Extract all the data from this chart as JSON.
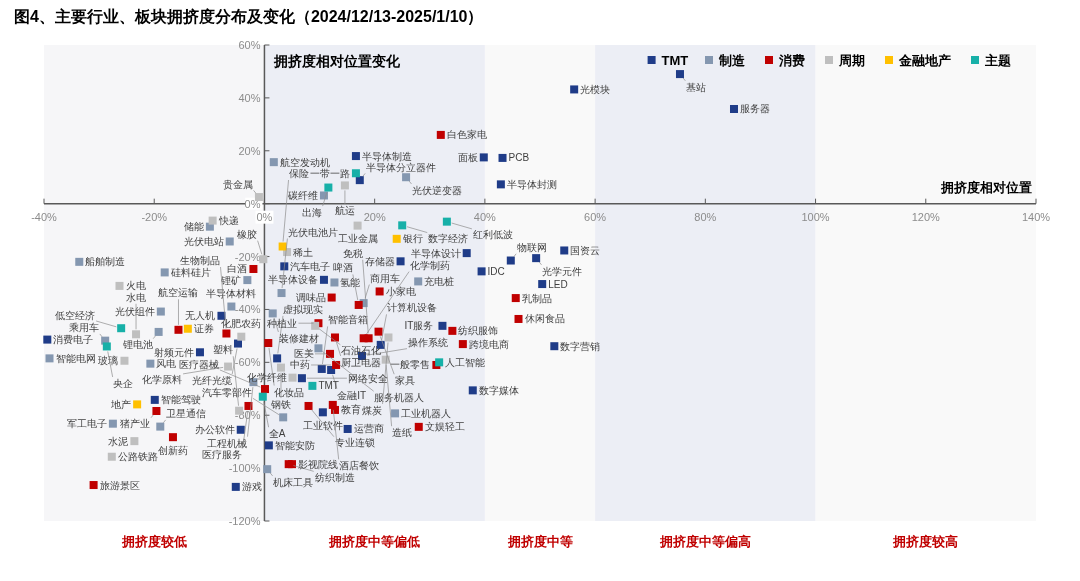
{
  "chart_data": {
    "type": "scatter",
    "title": "图4、主要行业、板块拥挤度分布及变化（2024/12/13-2025/1/10）",
    "xlabel": "拥挤度相对位置",
    "ylabel": "拥挤度相对位置变化",
    "xlim": [
      -40,
      140
    ],
    "ylim": [
      -120,
      60
    ],
    "xticks": [
      {
        "value": -40,
        "label": "-40%"
      },
      {
        "value": -20,
        "label": "-20%"
      },
      {
        "value": 0,
        "label": "0%"
      },
      {
        "value": 20,
        "label": "20%"
      },
      {
        "value": 40,
        "label": "40%"
      },
      {
        "value": 60,
        "label": "60%"
      },
      {
        "value": 80,
        "label": "80%"
      },
      {
        "value": 100,
        "label": "100%"
      },
      {
        "value": 120,
        "label": "120%"
      },
      {
        "value": 140,
        "label": "140%"
      }
    ],
    "yticks": [
      {
        "value": 60,
        "label": "60%"
      },
      {
        "value": 40,
        "label": "40%"
      },
      {
        "value": 20,
        "label": "20%"
      },
      {
        "value": 0,
        "label": "0%"
      },
      {
        "value": -20,
        "label": "-20%"
      },
      {
        "value": -40,
        "label": "-40%"
      },
      {
        "value": -60,
        "label": "-60%"
      },
      {
        "value": -80,
        "label": "-80%"
      },
      {
        "value": -100,
        "label": "-100%"
      },
      {
        "value": -120,
        "label": "-120%"
      }
    ],
    "grid": false,
    "legend": "top right",
    "marker": "square",
    "bands": [
      {
        "axis": "x",
        "from": -40,
        "to": 0,
        "label": "拥挤度较低",
        "color": "#f6f6f8"
      },
      {
        "axis": "x",
        "from": 0,
        "to": 40,
        "label": "拥挤度中等偏低",
        "color": "#eceef5"
      },
      {
        "axis": "x",
        "from": 40,
        "to": 60,
        "label": "拥挤度中等",
        "color": "#f9f9f9"
      },
      {
        "axis": "x",
        "from": 60,
        "to": 100,
        "label": "拥挤度中等偏高",
        "color": "#eceef5"
      },
      {
        "axis": "x",
        "from": 100,
        "to": 140,
        "label": "拥挤度较高",
        "color": "#f9f9f9"
      }
    ],
    "series": [
      {
        "name": "TMT",
        "color": "#1f3c88",
        "x": [
          75.4,
          56.2,
          85.2,
          39.8,
          43.2,
          42.9,
          16.6,
          17.3,
          -7.8,
          -39.4,
          -11.7,
          -4.8,
          -19.9,
          -4.3,
          -5.2,
          0.8,
          10.6,
          15.1,
          37.8,
          6.8,
          12.1,
          10.4,
          2.3,
          36.7,
          24.7,
          39.4,
          3.6,
          10.8,
          32.3,
          21.1,
          17.7,
          54.4,
          44.7,
          49.3,
          50.4,
          52.6
        ],
        "values": [
          49.0,
          43.2,
          35.8,
          17.5,
          17.3,
          7.3,
          18.0,
          8.9,
          -42.4,
          -51.4,
          -56.2,
          -52.9,
          -74.2,
          -85.5,
          -107.1,
          -91.4,
          -78.9,
          -85.2,
          -70.6,
          -66.0,
          -62.9,
          -62.5,
          -58.5,
          -18.7,
          -21.8,
          -25.6,
          -23.7,
          -28.8,
          -46.2,
          -53.4,
          -57.6,
          -17.7,
          -21.5,
          -20.6,
          -30.4,
          -53.9
        ]
      },
      {
        "name": "制造",
        "color": "#8497b0",
        "x": [
          1.7,
          25.7,
          10.8,
          -9.9,
          -6.3,
          -3.1,
          -33.6,
          -18.1,
          -18.8,
          -6.0,
          -19.2,
          -28.9,
          -39.0,
          -20.7,
          -18.9,
          -27.5,
          0.5,
          3.4,
          23.7,
          12.7,
          27.9,
          3.1,
          18.0,
          1.5,
          9.8,
          -2.0
        ],
        "values": [
          15.7,
          10.0,
          3.1,
          -8.7,
          -14.3,
          -28.9,
          -22.0,
          -26.0,
          -40.8,
          -38.9,
          -48.5,
          -51.8,
          -58.5,
          -60.5,
          -84.3,
          -83.2,
          -100.4,
          -80.8,
          -79.3,
          -29.8,
          -29.4,
          -33.8,
          -37.6,
          -41.5,
          -54.7,
          -67.5
        ]
      },
      {
        "name": "消费",
        "color": "#c00000",
        "x": [
          32.0,
          -2.0,
          -15.6,
          -6.9,
          0.7,
          0.1,
          -2.9,
          -19.6,
          -16.6,
          -31.0,
          8.0,
          12.4,
          12.8,
          28.0,
          4.4,
          5.0,
          31.2,
          20.9,
          12.2,
          17.1,
          9.8,
          34.1,
          36.0,
          20.7,
          18.9,
          18.0,
          12.8,
          11.9,
          13.0,
          45.6,
          46.1
        ],
        "values": [
          26.0,
          -24.7,
          -47.7,
          -49.1,
          -52.7,
          -70.1,
          -76.5,
          -78.4,
          -88.3,
          -106.4,
          -76.5,
          -76.1,
          -78.0,
          -84.4,
          -98.5,
          -98.5,
          -61.0,
          -33.2,
          -35.5,
          -38.3,
          -45.2,
          -48.1,
          -53.1,
          -48.4,
          -50.9,
          -50.9,
          -50.6,
          -56.8,
          -61.0,
          -35.7,
          -43.6
        ]
      },
      {
        "name": "周期",
        "color": "#bfbfbf",
        "x": [
          14.6,
          -1.0,
          -9.4,
          -0.2,
          -26.3,
          -23.3,
          -4.2,
          -6.6,
          -25.4,
          -23.6,
          -27.7,
          -4.6,
          16.9,
          4.1,
          9.2,
          22.5,
          5.1,
          3.0,
          22.0
        ],
        "values": [
          6.9,
          2.5,
          -6.4,
          -21.0,
          -31.1,
          -49.4,
          -50.3,
          -61.6,
          -59.4,
          -89.8,
          -95.7,
          -78.3,
          -8.3,
          -18.3,
          -46.2,
          -50.6,
          -65.8,
          -62.0,
          -59.0
        ]
      },
      {
        "name": "金融地产",
        "color": "#ffc000",
        "x": [
          -13.9,
          -23.1,
          24.0,
          3.3
        ],
        "values": [
          -47.3,
          -75.9,
          -13.3,
          -16.2
        ]
      },
      {
        "name": "主题",
        "color": "#17b0a8",
        "x": [
          16.6,
          11.6,
          -26.0,
          -28.6,
          -0.3,
          8.7,
          31.7,
          25.0,
          33.1
        ],
        "values": [
          11.5,
          6.1,
          -47.1,
          -54.0,
          -73.0,
          -68.9,
          -60.0,
          -8.2,
          -6.8
        ]
      }
    ],
    "annotations": [
      {
        "text": "基站",
        "x": 75.4,
        "y": 49.0
      },
      {
        "text": "光模块",
        "x": 56.2,
        "y": 43.2
      },
      {
        "text": "服务器",
        "x": 85.2,
        "y": 35.8
      },
      {
        "text": "面板",
        "x": 39.8,
        "y": 17.5
      },
      {
        "text": "PCB",
        "x": 43.2,
        "y": 17.3
      },
      {
        "text": "半导体封测",
        "x": 42.9,
        "y": 7.3
      },
      {
        "text": "半导体制造",
        "x": 16.6,
        "y": 18.0
      },
      {
        "text": "半导体分立器件",
        "x": 17.3,
        "y": 8.9
      },
      {
        "text": "无人机",
        "x": -7.8,
        "y": -42.4
      },
      {
        "text": "消费电子",
        "x": -39.4,
        "y": -51.4
      },
      {
        "text": "射频元件",
        "x": -11.7,
        "y": -56.2
      },
      {
        "text": "光纤光缆",
        "x": -4.8,
        "y": -52.9
      },
      {
        "text": "智能驾驶",
        "x": -19.9,
        "y": -74.2
      },
      {
        "text": "办公软件",
        "x": -4.3,
        "y": -85.5
      },
      {
        "text": "游戏",
        "x": -5.2,
        "y": -107.1
      },
      {
        "text": "智能安防",
        "x": 0.8,
        "y": -91.4
      },
      {
        "text": "工业软件",
        "x": 10.6,
        "y": -78.9
      },
      {
        "text": "运营商",
        "x": 15.1,
        "y": -85.2
      },
      {
        "text": "数字媒体",
        "x": 37.8,
        "y": -70.6
      },
      {
        "text": "网络安全",
        "x": 6.8,
        "y": -66.0
      },
      {
        "text": "金融IT",
        "x": 12.1,
        "y": -62.9
      },
      {
        "text": "智能音箱",
        "x": 10.4,
        "y": -62.5
      },
      {
        "text": "虚拟现实",
        "x": 2.3,
        "y": -58.5
      },
      {
        "text": "半导体设计",
        "x": 36.7,
        "y": -18.7
      },
      {
        "text": "存储器",
        "x": 24.7,
        "y": -21.8
      },
      {
        "text": "IDC",
        "x": 39.4,
        "y": -25.6
      },
      {
        "text": "汽车电子",
        "x": 3.6,
        "y": -23.7
      },
      {
        "text": "半导体设备",
        "x": 10.8,
        "y": -28.8
      },
      {
        "text": "IT服务",
        "x": 32.3,
        "y": -46.2
      },
      {
        "text": "计算机设备",
        "x": 21.1,
        "y": -53.4
      },
      {
        "text": "操作系统",
        "x": 17.7,
        "y": -57.6
      },
      {
        "text": "国资云",
        "x": 54.4,
        "y": -17.7
      },
      {
        "text": "物联网",
        "x": 44.7,
        "y": -21.5
      },
      {
        "text": "光学元件",
        "x": 49.3,
        "y": -20.6
      },
      {
        "text": "LED",
        "x": 50.4,
        "y": -30.4
      },
      {
        "text": "数字营销",
        "x": 52.6,
        "y": -53.9
      },
      {
        "text": "航空发动机",
        "x": 1.7,
        "y": 15.7
      },
      {
        "text": "光伏逆变器",
        "x": 25.7,
        "y": 10.0
      },
      {
        "text": "碳纤维",
        "x": 10.8,
        "y": 3.1
      },
      {
        "text": "储能",
        "x": -9.9,
        "y": -8.7
      },
      {
        "text": "光伏电站",
        "x": -6.3,
        "y": -14.3
      },
      {
        "text": "锂矿",
        "x": -3.1,
        "y": -28.9
      },
      {
        "text": "船舶制造",
        "x": -33.6,
        "y": -22.0
      },
      {
        "text": "硅料硅片",
        "x": -18.1,
        "y": -26.0
      },
      {
        "text": "光伏组件",
        "x": -18.8,
        "y": -40.8
      },
      {
        "text": "半导体材料",
        "x": -6.0,
        "y": -38.9
      },
      {
        "text": "锂电池",
        "x": -19.2,
        "y": -48.5
      },
      {
        "text": "乘用车",
        "x": -28.9,
        "y": -51.8
      },
      {
        "text": "智能电网",
        "x": -39.0,
        "y": -58.5
      },
      {
        "text": "风电",
        "x": -20.7,
        "y": -60.5
      },
      {
        "text": "卫星通信",
        "x": -18.9,
        "y": -84.3
      },
      {
        "text": "军工电子",
        "x": -27.5,
        "y": -83.2
      },
      {
        "text": "机床工具",
        "x": 0.5,
        "y": -100.4
      },
      {
        "text": "汽车零部件",
        "x": 3.4,
        "y": -80.8
      },
      {
        "text": "工业机器人",
        "x": 23.7,
        "y": -79.3
      },
      {
        "text": "氢能",
        "x": 12.7,
        "y": -29.8
      },
      {
        "text": "充电桩",
        "x": 27.9,
        "y": -29.4
      },
      {
        "text": "光伏电池片",
        "x": 3.1,
        "y": -33.8
      },
      {
        "text": "商用车",
        "x": 18.0,
        "y": -37.6
      },
      {
        "text": "装修建材",
        "x": 1.5,
        "y": -41.5
      },
      {
        "text": "服务机器人",
        "x": 9.8,
        "y": -54.7
      },
      {
        "text": "工程机械",
        "x": -2.0,
        "y": -67.5
      },
      {
        "text": "白色家电",
        "x": 32.0,
        "y": 26.0
      },
      {
        "text": "白酒",
        "x": -2.0,
        "y": -24.7
      },
      {
        "text": "航空运输",
        "x": -15.6,
        "y": -47.7
      },
      {
        "text": "生物制品",
        "x": -6.9,
        "y": -49.1
      },
      {
        "text": "化妆品",
        "x": 0.7,
        "y": -52.7
      },
      {
        "text": "医疗器械",
        "x": 0.1,
        "y": -70.1
      },
      {
        "text": "医疗服务",
        "x": -2.9,
        "y": -76.5
      },
      {
        "text": "猪产业",
        "x": -19.6,
        "y": -78.4
      },
      {
        "text": "创新药",
        "x": -16.6,
        "y": -88.3
      },
      {
        "text": "旅游景区",
        "x": -31.0,
        "y": -106.4
      },
      {
        "text": "专业连锁",
        "x": 8.0,
        "y": -76.5
      },
      {
        "text": "酒店餐饮",
        "x": 12.4,
        "y": -76.1
      },
      {
        "text": "教育",
        "x": 12.8,
        "y": -78.0
      },
      {
        "text": "文娱轻工",
        "x": 28.0,
        "y": -84.4
      },
      {
        "text": "纺织制造",
        "x": 4.4,
        "y": -98.5
      },
      {
        "text": "影视院线",
        "x": 5.0,
        "y": -98.5
      },
      {
        "text": "一般零售",
        "x": 31.2,
        "y": -61.0
      },
      {
        "text": "小家电",
        "x": 20.9,
        "y": -33.2
      },
      {
        "text": "调味品",
        "x": 12.2,
        "y": -35.5
      },
      {
        "text": "啤酒",
        "x": 17.1,
        "y": -38.3
      },
      {
        "text": "种植业",
        "x": 9.8,
        "y": -45.2
      },
      {
        "text": "纺织服饰",
        "x": 34.1,
        "y": -48.1
      },
      {
        "text": "跨境电商",
        "x": 36.0,
        "y": -53.1
      },
      {
        "text": "家具",
        "x": 20.7,
        "y": -48.4
      },
      {
        "text": "免税",
        "x": 18.9,
        "y": -50.9
      },
      {
        "text": "化学制药",
        "x": 18.0,
        "y": -50.9
      },
      {
        "text": "厨卫电器",
        "x": 12.8,
        "y": -50.6
      },
      {
        "text": "医美",
        "x": 11.9,
        "y": -56.8
      },
      {
        "text": "中药",
        "x": 13.0,
        "y": -61.0
      },
      {
        "text": "乳制品",
        "x": 45.6,
        "y": -35.7
      },
      {
        "text": "休闲食品",
        "x": 46.1,
        "y": -43.6
      },
      {
        "text": "航运",
        "x": 14.6,
        "y": 6.9
      },
      {
        "text": "贵金属",
        "x": -1.0,
        "y": 2.5
      },
      {
        "text": "快递",
        "x": -9.4,
        "y": -6.4
      },
      {
        "text": "橡胶",
        "x": -0.2,
        "y": -21.0
      },
      {
        "text": "火电",
        "x": -26.3,
        "y": -31.1
      },
      {
        "text": "水电",
        "x": -23.3,
        "y": -49.4
      },
      {
        "text": "化肥农药",
        "x": -4.2,
        "y": -50.3
      },
      {
        "text": "化学原料",
        "x": -6.6,
        "y": -61.6
      },
      {
        "text": "玻璃",
        "x": -25.4,
        "y": -59.4
      },
      {
        "text": "水泥",
        "x": -23.6,
        "y": -89.8
      },
      {
        "text": "公路铁路",
        "x": -27.7,
        "y": -95.7
      },
      {
        "text": "塑料",
        "x": -4.6,
        "y": -78.3
      },
      {
        "text": "工业金属",
        "x": 16.9,
        "y": -8.3
      },
      {
        "text": "稀土",
        "x": 4.1,
        "y": -18.3
      },
      {
        "text": "石油石化",
        "x": 9.2,
        "y": -46.2
      },
      {
        "text": "煤炭",
        "x": 22.5,
        "y": -50.6
      },
      {
        "text": "化学纤维",
        "x": 5.1,
        "y": -65.8
      },
      {
        "text": "钢铁",
        "x": 3.0,
        "y": -62.0
      },
      {
        "text": "造纸",
        "x": 22.0,
        "y": -59.0
      },
      {
        "text": "证券",
        "x": -13.9,
        "y": -47.3
      },
      {
        "text": "地产",
        "x": -23.1,
        "y": -75.9
      },
      {
        "text": "银行",
        "x": 24.0,
        "y": -13.3
      },
      {
        "text": "保险",
        "x": 3.3,
        "y": -16.2
      },
      {
        "text": "一带一路",
        "x": 16.6,
        "y": 11.5
      },
      {
        "text": "出海",
        "x": 11.6,
        "y": 6.1
      },
      {
        "text": "低空经济",
        "x": -26.0,
        "y": -47.1
      },
      {
        "text": "央企",
        "x": -28.6,
        "y": -54.0
      },
      {
        "text": "全A",
        "x": -0.3,
        "y": -73.0
      },
      {
        "text": "TMT",
        "x": 8.7,
        "y": -68.9
      },
      {
        "text": "人工智能",
        "x": 31.7,
        "y": -60.0
      },
      {
        "text": "数字经济",
        "x": 25.0,
        "y": -8.2
      },
      {
        "text": "红利低波",
        "x": 33.1,
        "y": -6.8
      }
    ]
  }
}
